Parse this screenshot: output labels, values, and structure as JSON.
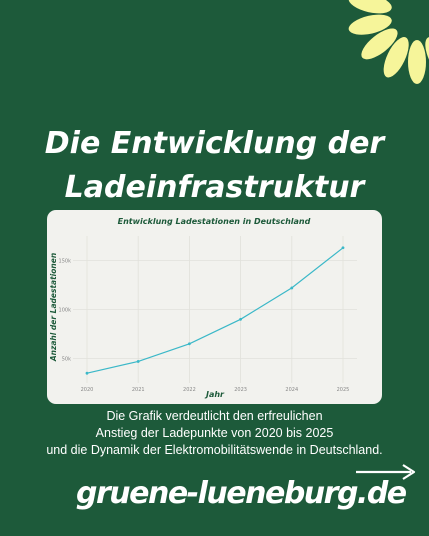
{
  "header": {
    "title_line1": "Die Entwicklung der",
    "title_line2": "Ladeinfrastruktur"
  },
  "chart_data": {
    "type": "line",
    "title": "Entwicklung Ladestationen in Deutschland",
    "xlabel": "Jahr",
    "ylabel": "Anzahl der Ladestationen",
    "x": [
      "2020",
      "2021",
      "2022",
      "2023",
      "2024",
      "2025"
    ],
    "series": [
      {
        "values": [
          35000,
          47000,
          65000,
          90000,
          122000,
          163000
        ]
      }
    ],
    "y_ticks": [
      50000,
      100000,
      150000
    ],
    "y_tick_labels": [
      "50k",
      "100k",
      "150k"
    ],
    "ylim": [
      25000,
      175000
    ],
    "grid": true,
    "line_color": "#3bb8c8"
  },
  "caption": {
    "line1": "Die Grafik verdeutlicht den erfreulichen",
    "line2": "Anstieg der Ladepunkte von 2020 bis 2025",
    "line3": "und die Dynamik der Elektromobilitätswende in Deutschland."
  },
  "footer": {
    "website": "gruene-lueneburg.de",
    "arrow_icon": "arrow-right-icon"
  },
  "colors": {
    "background": "#1d5a3a",
    "accent_yellow": "#f6f59a",
    "chart_green": "#1d5a3a"
  }
}
